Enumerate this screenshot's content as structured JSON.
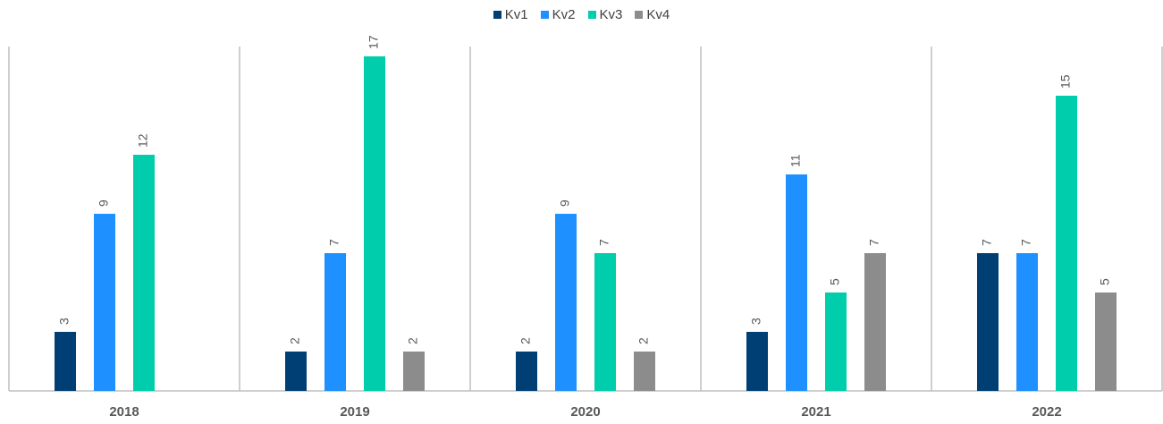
{
  "chart_data": {
    "type": "bar",
    "title": "",
    "xlabel": "",
    "ylabel": "",
    "ylim": [
      0,
      17.5
    ],
    "grid": false,
    "legend_position": "top-center",
    "categories": [
      "2018",
      "2019",
      "2020",
      "2021",
      "2022"
    ],
    "series": [
      {
        "name": "Kv1",
        "color": "#003f73",
        "values": [
          3,
          2,
          2,
          3,
          7
        ]
      },
      {
        "name": "Kv2",
        "color": "#1e90ff",
        "values": [
          9,
          7,
          9,
          11,
          7
        ]
      },
      {
        "name": "Kv3",
        "color": "#00cdac",
        "values": [
          12,
          17,
          7,
          5,
          15
        ]
      },
      {
        "name": "Kv4",
        "color": "#8c8c8c",
        "values": [
          null,
          2,
          2,
          7,
          5
        ]
      }
    ],
    "data_labels": true
  }
}
